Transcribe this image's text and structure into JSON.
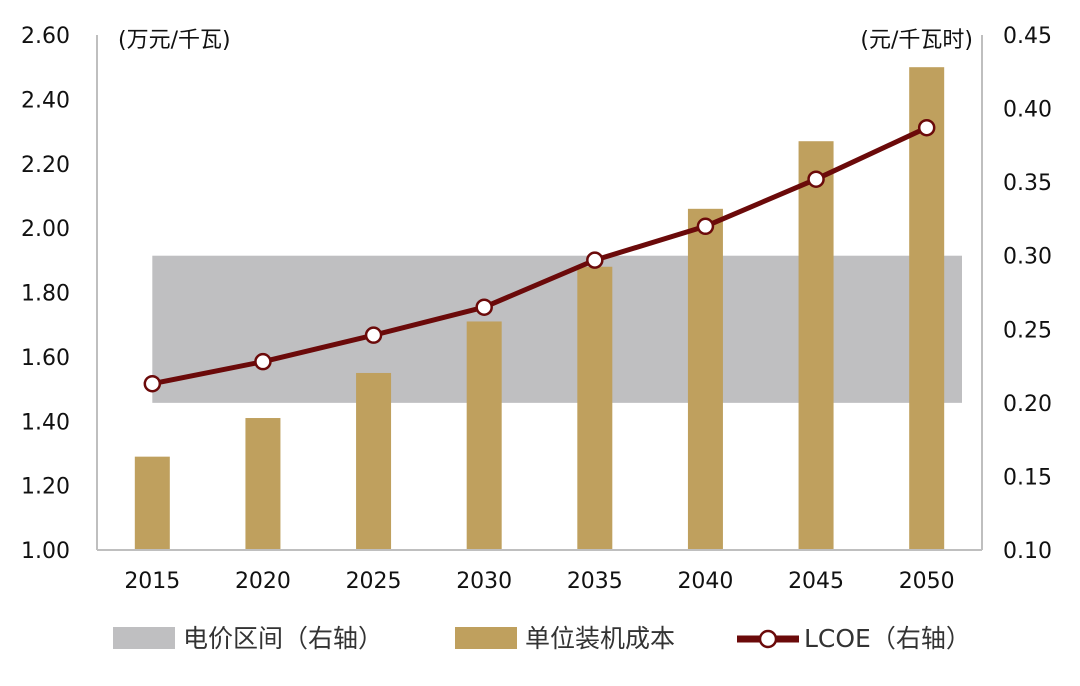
{
  "chart_data": {
    "type": "bar",
    "categories": [
      "2015",
      "2020",
      "2025",
      "2030",
      "2035",
      "2040",
      "2045",
      "2050"
    ],
    "left_axis": {
      "unit": "(万元/千瓦)",
      "ylim": [
        1.0,
        2.6
      ],
      "ticks": [
        "1.00",
        "1.20",
        "1.40",
        "1.60",
        "1.80",
        "2.00",
        "2.20",
        "2.40",
        "2.60"
      ]
    },
    "right_axis": {
      "unit": "(元/千瓦时)",
      "ylim": [
        0.1,
        0.45
      ],
      "ticks": [
        "0.10",
        "0.15",
        "0.20",
        "0.25",
        "0.30",
        "0.35",
        "0.40",
        "0.45"
      ]
    },
    "band": {
      "name": "电价区间（右轴）",
      "range": [
        0.2,
        0.3
      ],
      "color": "#bfbfc1"
    },
    "series": [
      {
        "name": "单位装机成本",
        "type": "bar",
        "axis": "left",
        "color": "#bfa05e",
        "values": [
          1.29,
          1.41,
          1.55,
          1.71,
          1.88,
          2.06,
          2.27,
          2.5
        ]
      },
      {
        "name": "LCOE（右轴）",
        "type": "line",
        "axis": "right",
        "color": "#6b0a0a",
        "values": [
          0.213,
          0.228,
          0.246,
          0.265,
          0.297,
          0.32,
          0.352,
          0.387
        ]
      }
    ],
    "legend_position": "bottom",
    "grid": false
  }
}
